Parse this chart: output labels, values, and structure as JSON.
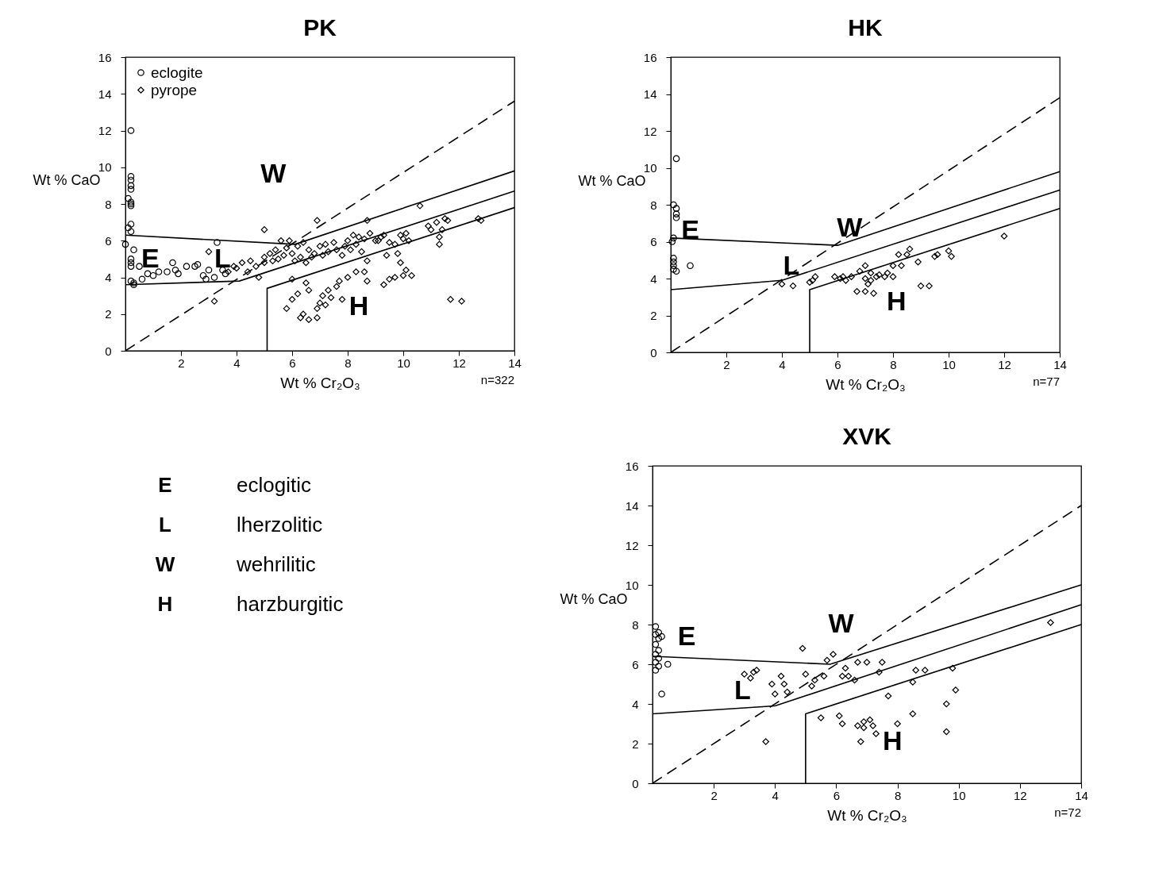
{
  "chart_data": [
    {
      "type": "scatter",
      "title": "PK",
      "xlabel": "Wt % Cr₂O₃",
      "ylabel": "Wt % CaO",
      "xlim": [
        0,
        14
      ],
      "ylim": [
        0,
        16
      ],
      "xticks": [
        2,
        4,
        6,
        8,
        10,
        12,
        14
      ],
      "yticks": [
        0,
        2,
        4,
        6,
        8,
        10,
        12,
        14,
        16
      ],
      "grid": false,
      "legend": "top left",
      "series": [
        {
          "name": "eclogite",
          "type": "scatter",
          "marker": "circle",
          "color": "#000000",
          "x": [
            0.2,
            0.2,
            0.2,
            0.2,
            0.2,
            0.1,
            0.2,
            0.2,
            0.2,
            0.2,
            0.1,
            0.2,
            0,
            0.3,
            0.2,
            0.2,
            0.2,
            0.2,
            0.3,
            0.3,
            0.5,
            0.6,
            0.8,
            1.0,
            1.2,
            1.5,
            1.7,
            1.8,
            1.9,
            2.2,
            2.5,
            2.6,
            2.8,
            2.9,
            3.0,
            3.2,
            3.3,
            3.5,
            3.6
          ],
          "values": [
            12.0,
            9.5,
            9.3,
            9.0,
            8.8,
            8.3,
            8.1,
            8.0,
            7.9,
            6.9,
            6.7,
            6.5,
            5.8,
            5.5,
            5.0,
            4.8,
            4.6,
            3.8,
            3.7,
            3.6,
            4.6,
            3.9,
            4.2,
            4.1,
            4.3,
            4.3,
            4.8,
            4.4,
            4.2,
            4.6,
            4.6,
            4.7,
            4.1,
            3.9,
            4.4,
            4.0,
            5.9,
            4.4,
            4.2
          ]
        },
        {
          "name": "pyrope",
          "type": "scatter",
          "marker": "diamond",
          "color": "#000000",
          "x": [
            3.2,
            3.0,
            3.7,
            3.9,
            4.0,
            4.2,
            4.4,
            4.5,
            4.7,
            4.8,
            5.0,
            5.0,
            5.0,
            5.2,
            5.3,
            5.4,
            5.5,
            5.6,
            5.7,
            5.8,
            5.9,
            6.0,
            6.0,
            6.1,
            6.2,
            6.3,
            6.4,
            6.5,
            6.6,
            6.7,
            6.8,
            6.9,
            7.0,
            7.1,
            7.2,
            7.3,
            7.5,
            7.6,
            7.8,
            7.9,
            8.0,
            8.1,
            8.2,
            8.3,
            8.4,
            8.5,
            8.6,
            8.7,
            8.8,
            9.0,
            9.1,
            9.2,
            9.3,
            9.4,
            9.5,
            9.7,
            9.9,
            10.0,
            10.1,
            10.2,
            10.6,
            10.9,
            11.0,
            11.2,
            11.3,
            11.3,
            11.4,
            11.5,
            11.6,
            12.7,
            12.8,
            5.8,
            6.0,
            6.2,
            6.3,
            6.4,
            6.6,
            6.5,
            6.6,
            6.9,
            6.9,
            7.0,
            7.1,
            7.2,
            7.3,
            7.4,
            7.6,
            7.7,
            7.8,
            8.0,
            8.3,
            8.6,
            8.7,
            8.7,
            9.3,
            9.5,
            9.7,
            9.8,
            9.9,
            10.0,
            10.1,
            10.3,
            11.7,
            12.1
          ],
          "values": [
            2.7,
            5.4,
            4.3,
            4.6,
            4.5,
            4.8,
            4.3,
            4.9,
            4.6,
            4.0,
            5.1,
            4.8,
            6.6,
            5.3,
            4.9,
            5.5,
            5.0,
            6.0,
            5.2,
            5.6,
            6.0,
            5.3,
            3.9,
            4.9,
            5.7,
            5.1,
            5.9,
            4.8,
            5.5,
            5.1,
            5.3,
            7.1,
            5.7,
            5.2,
            5.8,
            5.4,
            5.9,
            5.5,
            5.2,
            5.7,
            6.0,
            5.5,
            6.3,
            5.8,
            6.2,
            5.4,
            6.1,
            7.1,
            6.4,
            6.0,
            6.0,
            6.2,
            6.3,
            5.2,
            5.9,
            5.8,
            6.3,
            6.1,
            6.4,
            6.0,
            7.9,
            6.8,
            6.6,
            7.0,
            6.2,
            5.8,
            6.6,
            7.2,
            7.1,
            7.2,
            7.1,
            2.3,
            2.8,
            3.1,
            1.8,
            2.0,
            1.7,
            3.7,
            3.3,
            1.8,
            2.3,
            2.6,
            3.0,
            2.5,
            3.3,
            2.9,
            3.5,
            3.8,
            2.8,
            4.0,
            4.3,
            4.3,
            3.8,
            4.9,
            3.6,
            3.9,
            4.0,
            5.3,
            4.8,
            4.1,
            4.4,
            4.1,
            2.8,
            2.7
          ]
        },
        {
          "type": "line",
          "marker": "none",
          "line_style": "solid",
          "color": "#000000",
          "x": [
            0,
            6.1,
            14
          ],
          "values": [
            6.3,
            5.8,
            9.8
          ]
        },
        {
          "type": "line",
          "marker": "none",
          "line_style": "solid",
          "color": "#000000",
          "x": [
            0,
            4.1,
            14
          ],
          "values": [
            3.6,
            3.8,
            8.7
          ]
        },
        {
          "type": "line",
          "marker": "none",
          "line_style": "solid",
          "color": "#000000",
          "x": [
            5.1,
            5.1,
            14
          ],
          "values": [
            0,
            3.4,
            7.8
          ]
        },
        {
          "type": "line",
          "marker": "none",
          "line_style": "dashed",
          "color": "#000000",
          "x": [
            0,
            14
          ],
          "values": [
            0,
            13.6
          ]
        }
      ],
      "annotations": [
        "E",
        "L",
        "W",
        "H",
        "n=322"
      ]
    },
    {
      "type": "scatter",
      "title": "HK",
      "xlabel": "Wt % Cr₂O₃",
      "ylabel": "Wt % CaO",
      "xlim": [
        0,
        14
      ],
      "ylim": [
        0,
        16
      ],
      "xticks": [
        2,
        4,
        6,
        8,
        10,
        12,
        14
      ],
      "yticks": [
        0,
        2,
        4,
        6,
        8,
        10,
        12,
        14,
        16
      ],
      "grid": false,
      "legend": "top left",
      "series": [
        {
          "name": "eclogite",
          "type": "scatter",
          "marker": "circle",
          "color": "#000000",
          "x": [
            0.2,
            0.1,
            0.2,
            0.2,
            0.2,
            0.1,
            0.05,
            0.1,
            0.1,
            0.1,
            0.1,
            0.2,
            0.7
          ],
          "values": [
            10.5,
            8.0,
            7.8,
            7.5,
            7.3,
            6.2,
            6.0,
            5.1,
            4.9,
            4.7,
            4.5,
            4.4,
            4.7
          ]
        },
        {
          "name": "pyrope",
          "type": "scatter",
          "marker": "diamond",
          "color": "#000000",
          "x": [
            4.0,
            4.4,
            5.0,
            5.1,
            5.2,
            5.9,
            6.1,
            6.2,
            6.3,
            6.5,
            6.7,
            6.8,
            7.0,
            7.0,
            7.0,
            7.1,
            7.2,
            7.2,
            7.3,
            7.4,
            7.5,
            7.7,
            7.8,
            8.0,
            8.0,
            8.2,
            8.3,
            8.5,
            8.6,
            8.9,
            9.0,
            9.3,
            9.5,
            9.6,
            10.0,
            10.1,
            12.0
          ],
          "values": [
            3.7,
            3.6,
            3.8,
            3.9,
            4.1,
            4.1,
            4.0,
            4.1,
            3.9,
            4.1,
            3.3,
            4.4,
            4.7,
            4.0,
            3.3,
            3.7,
            3.9,
            4.3,
            3.2,
            4.1,
            4.2,
            4.1,
            4.3,
            4.1,
            4.7,
            5.3,
            4.7,
            5.3,
            5.6,
            4.9,
            3.6,
            3.6,
            5.2,
            5.3,
            5.5,
            5.2,
            6.3
          ]
        },
        {
          "type": "line",
          "marker": "none",
          "line_style": "solid",
          "color": "#000000",
          "x": [
            0,
            6.0,
            14
          ],
          "values": [
            6.2,
            5.8,
            9.8
          ]
        },
        {
          "type": "line",
          "marker": "none",
          "line_style": "solid",
          "color": "#000000",
          "x": [
            0,
            4.0,
            14
          ],
          "values": [
            3.4,
            3.9,
            8.8
          ]
        },
        {
          "type": "line",
          "marker": "none",
          "line_style": "solid",
          "color": "#000000",
          "x": [
            5,
            5,
            14
          ],
          "values": [
            0,
            3.4,
            7.8
          ]
        },
        {
          "type": "line",
          "marker": "none",
          "line_style": "dashed",
          "color": "#000000",
          "x": [
            0,
            14
          ],
          "values": [
            0,
            13.8
          ]
        }
      ],
      "annotations": [
        "E",
        "L",
        "W",
        "H",
        "n=77"
      ]
    },
    {
      "type": "other",
      "annotations": [
        "E",
        "eclogitic",
        "L",
        "lherzolitic",
        "W",
        "wehrilitic",
        "H",
        "harzburgitic"
      ]
    },
    {
      "type": "scatter",
      "title": "XVK",
      "xlabel": "Wt % Cr₂O₃",
      "ylabel": "Wt % CaO",
      "xlim": [
        0,
        14
      ],
      "ylim": [
        0,
        16
      ],
      "xticks": [
        2,
        4,
        6,
        8,
        10,
        12,
        14
      ],
      "yticks": [
        0,
        2,
        4,
        6,
        8,
        10,
        12,
        14,
        16
      ],
      "grid": false,
      "legend": "top left",
      "series": [
        {
          "name": "eclogite",
          "type": "scatter",
          "marker": "circle",
          "color": "#000000",
          "x": [
            0.1,
            0.2,
            0.1,
            0.2,
            0.1,
            0.2,
            0.1,
            0.2,
            0.1,
            0.2,
            0.1,
            0.5,
            0.3,
            0.3
          ],
          "values": [
            7.9,
            7.6,
            7.5,
            7.3,
            7.0,
            6.7,
            6.5,
            6.3,
            6.1,
            5.9,
            5.7,
            6.0,
            4.5,
            7.4
          ]
        },
        {
          "name": "pyrope",
          "type": "scatter",
          "marker": "diamond",
          "color": "#000000",
          "x": [
            3.0,
            3.2,
            3.3,
            3.4,
            3.7,
            3.9,
            4.0,
            4.2,
            4.3,
            4.4,
            4.9,
            5.2,
            5.3,
            5.0,
            5.5,
            5.6,
            5.7,
            5.9,
            6.1,
            6.2,
            6.2,
            6.3,
            6.4,
            6.6,
            6.7,
            6.7,
            6.8,
            6.9,
            6.9,
            7.0,
            7.1,
            7.2,
            7.3,
            7.4,
            7.5,
            7.7,
            8.0,
            8.5,
            8.5,
            8.6,
            8.9,
            9.6,
            9.6,
            9.8,
            9.9,
            13.0
          ],
          "values": [
            5.5,
            5.3,
            5.6,
            5.7,
            2.1,
            5.0,
            4.5,
            5.4,
            5.0,
            4.6,
            6.8,
            4.9,
            5.2,
            5.5,
            3.3,
            5.4,
            6.2,
            6.5,
            3.4,
            5.4,
            3.0,
            5.8,
            5.4,
            5.2,
            2.9,
            6.1,
            2.1,
            3.1,
            2.8,
            6.1,
            3.2,
            2.9,
            2.5,
            5.6,
            6.1,
            4.4,
            3.0,
            5.1,
            3.5,
            5.7,
            5.7,
            4.0,
            2.6,
            5.8,
            4.7,
            8.1
          ]
        },
        {
          "type": "line",
          "marker": "none",
          "line_style": "solid",
          "color": "#000000",
          "x": [
            0,
            5.8,
            14
          ],
          "values": [
            6.4,
            6.0,
            10.0
          ]
        },
        {
          "type": "line",
          "marker": "none",
          "line_style": "solid",
          "color": "#000000",
          "x": [
            0,
            4.0,
            14
          ],
          "values": [
            3.5,
            3.9,
            9.0
          ]
        },
        {
          "type": "line",
          "marker": "none",
          "line_style": "solid",
          "color": "#000000",
          "x": [
            5,
            5,
            14
          ],
          "values": [
            0,
            3.5,
            8.0
          ]
        },
        {
          "type": "line",
          "marker": "none",
          "line_style": "dashed",
          "color": "#000000",
          "x": [
            0,
            14
          ],
          "values": [
            0,
            14
          ]
        }
      ],
      "annotations": [
        "E",
        "L",
        "W",
        "H",
        "n=72"
      ]
    }
  ]
}
